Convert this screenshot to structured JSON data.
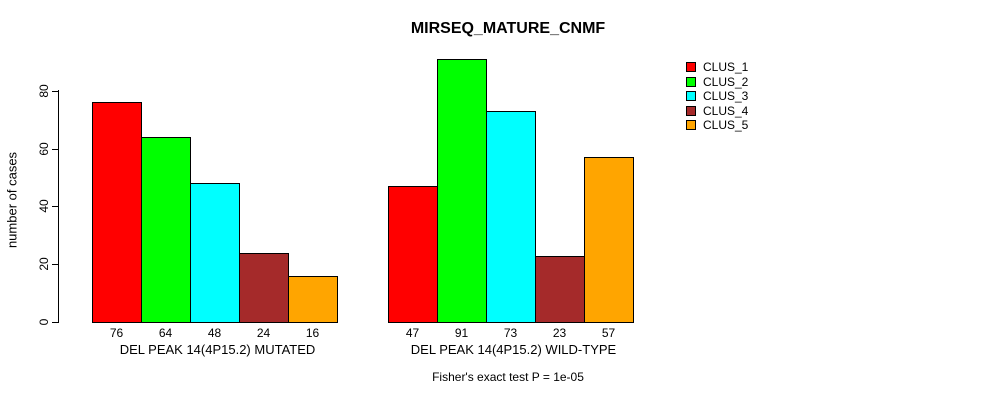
{
  "chart_data": {
    "type": "bar",
    "title": "MIRSEQ_MATURE_CNMF",
    "ylabel": "number of cases",
    "xlabel": "",
    "yticks": [
      0,
      20,
      40,
      60,
      80
    ],
    "ylim": [
      0,
      91
    ],
    "grid": false,
    "bar_value_labels": true,
    "categories": [
      "CLUS_1",
      "CLUS_2",
      "CLUS_3",
      "CLUS_4",
      "CLUS_5"
    ],
    "groups": [
      {
        "label": "DEL PEAK 14(4P15.2) MUTATED",
        "values": [
          76,
          64,
          48,
          24,
          16
        ]
      },
      {
        "label": "DEL PEAK 14(4P15.2) WILD-TYPE",
        "values": [
          47,
          91,
          73,
          23,
          57
        ]
      }
    ],
    "series_colors": [
      "#FF0000",
      "#00FF00",
      "#00FFFF",
      "#A52A2A",
      "#FFA500"
    ],
    "legend": {
      "position": "top-right",
      "entries": [
        {
          "label": "CLUS_1",
          "color": "#FF0000"
        },
        {
          "label": "CLUS_2",
          "color": "#00FF00"
        },
        {
          "label": "CLUS_3",
          "color": "#00FFFF"
        },
        {
          "label": "CLUS_4",
          "color": "#A52A2A"
        },
        {
          "label": "CLUS_5",
          "color": "#FFA500"
        }
      ]
    },
    "annotation": "Fisher's exact test P = 1e-05",
    "axis_color": "#000000",
    "background_color": "#FFFFFF"
  }
}
